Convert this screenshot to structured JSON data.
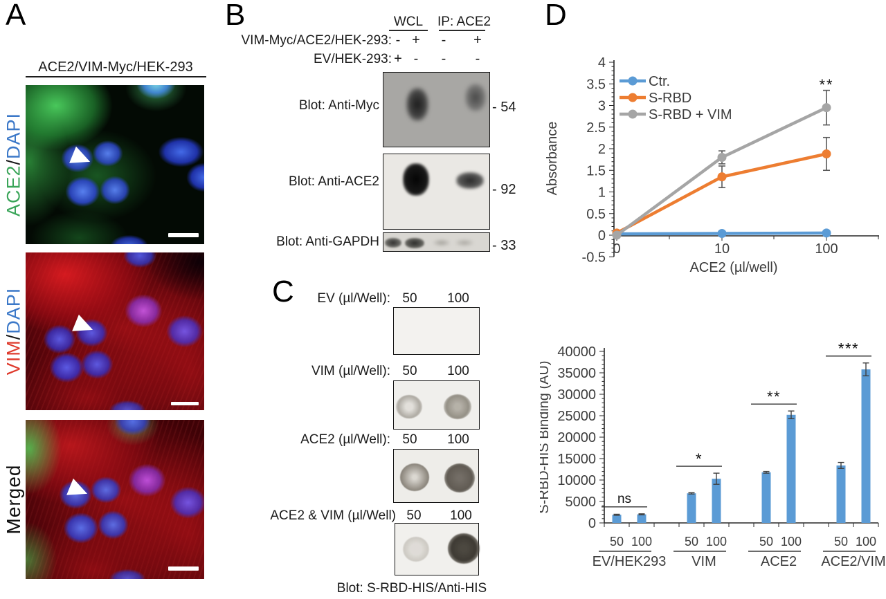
{
  "panelA": {
    "label": "A",
    "title": "ACE2/VIM-Myc/HEK-293",
    "images": [
      {
        "name": "ace2-dapi",
        "label_parts": [
          {
            "text": "ACE2",
            "color": "#3aa559"
          },
          {
            "text": "/",
            "color": "#1a1a1a"
          },
          {
            "text": "DAPI",
            "color": "#3b78c8"
          }
        ]
      },
      {
        "name": "vim-dapi",
        "label_parts": [
          {
            "text": "VIM",
            "color": "#df3a2c"
          },
          {
            "text": "/",
            "color": "#1a1a1a"
          },
          {
            "text": "DAPI",
            "color": "#3b78c8"
          }
        ]
      },
      {
        "name": "merged",
        "label_parts": [
          {
            "text": "Merged",
            "color": "#111111"
          }
        ]
      }
    ]
  },
  "panelB": {
    "label": "B",
    "col_headers": [
      "WCL",
      "IP: ACE2"
    ],
    "condition_rows": [
      {
        "label": "VIM-Myc/ACE2/HEK-293:",
        "values": [
          "-",
          "+",
          "-",
          "+"
        ]
      },
      {
        "label": "EV/HEK-293:",
        "values": [
          "+",
          "-",
          "-",
          "-"
        ]
      }
    ],
    "blots": [
      {
        "label": "Blot: Anti-Myc",
        "marker": "- 54"
      },
      {
        "label": "Blot: Anti-ACE2",
        "marker": "- 92"
      },
      {
        "label": "Blot: Anti-GAPDH",
        "marker": "- 33"
      }
    ]
  },
  "panelC": {
    "label": "C",
    "rows": [
      {
        "label": "EV (µl/Well):",
        "doses": [
          "50",
          "100"
        ]
      },
      {
        "label": "VIM (µl/Well):",
        "doses": [
          "50",
          "100"
        ]
      },
      {
        "label": "ACE2 (µl/Well):",
        "doses": [
          "50",
          "100"
        ]
      },
      {
        "label": "ACE2 & VIM (µl/Well)",
        "doses": [
          "50",
          "100"
        ]
      }
    ],
    "caption": "Blot: S-RBD-HIS/Anti-HIS"
  },
  "panelD": {
    "label": "D"
  },
  "chart_data": [
    {
      "type": "line",
      "xlabel": "ACE2 (µl/well)",
      "ylabel": "Absorbance",
      "x_categories": [
        "0",
        "10",
        "100"
      ],
      "ylim": [
        -0.5,
        4
      ],
      "yticks": [
        -0.5,
        0,
        0.5,
        1,
        1.5,
        2,
        2.5,
        3,
        3.5,
        4
      ],
      "grid": false,
      "legend_position": "upper-left-inside",
      "series": [
        {
          "name": "Ctr.",
          "color": "#5B9BD5",
          "values": [
            0.03,
            0.04,
            0.05
          ],
          "errors": [
            0,
            0,
            0
          ]
        },
        {
          "name": "S-RBD",
          "color": "#ED7D31",
          "values": [
            0.05,
            1.35,
            1.88
          ],
          "errors": [
            0,
            0.25,
            0.38
          ]
        },
        {
          "name": "S-RBD + VIM",
          "color": "#A5A5A5",
          "values": [
            0.0,
            1.8,
            2.95
          ],
          "errors": [
            0,
            0.15,
            0.4
          ]
        }
      ],
      "annotations": [
        {
          "text": "**",
          "x": "100",
          "series": "S-RBD + VIM"
        }
      ]
    },
    {
      "type": "bar",
      "ylabel": "S-RBD-HIS Binding (AU)",
      "ylim": [
        0,
        40000
      ],
      "yticks": [
        0,
        5000,
        10000,
        15000,
        20000,
        25000,
        30000,
        35000,
        40000
      ],
      "bar_color": "#5B9BD5",
      "grid": false,
      "groups": [
        {
          "name": "EV/HEK293",
          "sig": "ns",
          "bars": [
            {
              "dose": "50",
              "value": 1900,
              "error": 120
            },
            {
              "dose": "100",
              "value": 2000,
              "error": 120
            }
          ]
        },
        {
          "name": "VIM",
          "sig": "*",
          "bars": [
            {
              "dose": "50",
              "value": 6900,
              "error": 150
            },
            {
              "dose": "100",
              "value": 10300,
              "error": 1300
            }
          ]
        },
        {
          "name": "ACE2",
          "sig": "**",
          "bars": [
            {
              "dose": "50",
              "value": 11800,
              "error": 200
            },
            {
              "dose": "100",
              "value": 25200,
              "error": 900
            }
          ]
        },
        {
          "name": "ACE2/VIM",
          "sig": "***",
          "bars": [
            {
              "dose": "50",
              "value": 13400,
              "error": 700
            },
            {
              "dose": "100",
              "value": 35800,
              "error": 1500
            }
          ]
        }
      ]
    }
  ]
}
